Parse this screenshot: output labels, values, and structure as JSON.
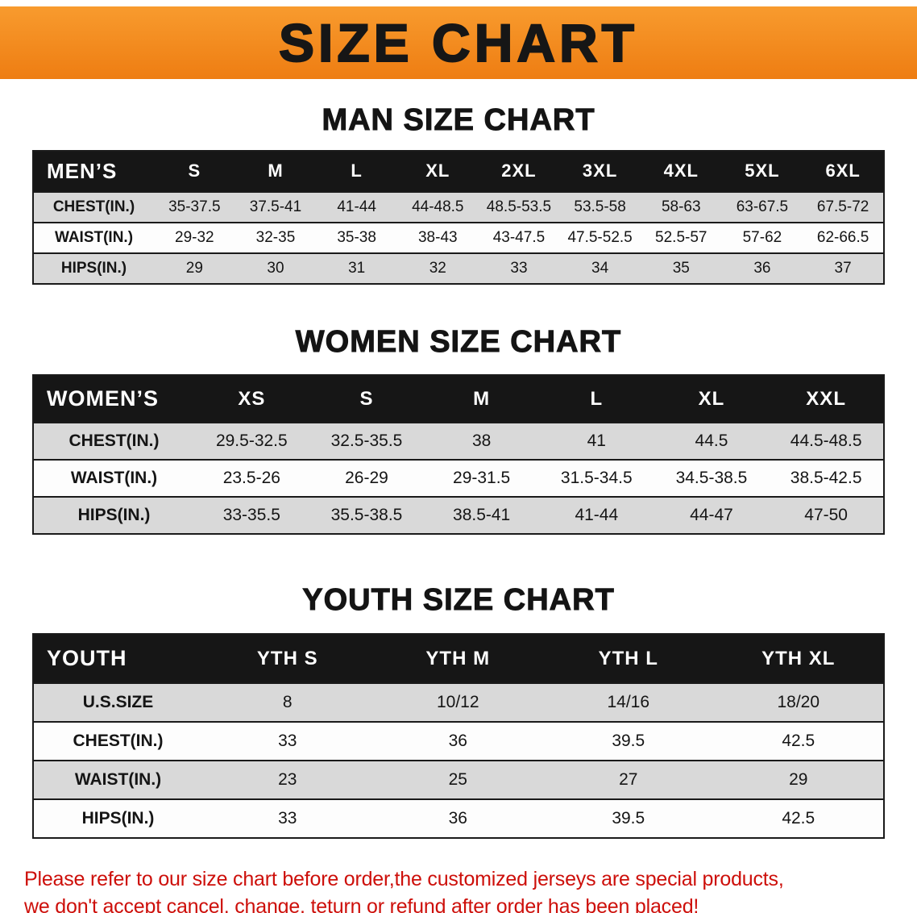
{
  "banner": {
    "title": "SIZE CHART"
  },
  "colors": {
    "banner_orange": "#f68b1f",
    "header_black": "#161616",
    "row_gray": "#d9d9d9",
    "footer_red": "#cd0f0a"
  },
  "men": {
    "heading": "MAN SIZE CHART",
    "table": {
      "header": [
        "MEN’S",
        "S",
        "M",
        "L",
        "XL",
        "2XL",
        "3XL",
        "4XL",
        "5XL",
        "6XL"
      ],
      "rows": [
        [
          "CHEST(IN.)",
          "35-37.5",
          "37.5-41",
          "41-44",
          "44-48.5",
          "48.5-53.5",
          "53.5-58",
          "58-63",
          "63-67.5",
          "67.5-72"
        ],
        [
          "WAIST(IN.)",
          "29-32",
          "32-35",
          "35-38",
          "38-43",
          "43-47.5",
          "47.5-52.5",
          "52.5-57",
          "57-62",
          "62-66.5"
        ],
        [
          "HIPS(IN.)",
          "29",
          "30",
          "31",
          "32",
          "33",
          "34",
          "35",
          "36",
          "37"
        ]
      ]
    }
  },
  "women": {
    "heading": "WOMEN SIZE CHART",
    "table": {
      "header": [
        "WOMEN’S",
        "XS",
        "S",
        "M",
        "L",
        "XL",
        "XXL"
      ],
      "rows": [
        [
          "CHEST(IN.)",
          "29.5-32.5",
          "32.5-35.5",
          "38",
          "41",
          "44.5",
          "44.5-48.5"
        ],
        [
          "WAIST(IN.)",
          "23.5-26",
          "26-29",
          "29-31.5",
          "31.5-34.5",
          "34.5-38.5",
          "38.5-42.5"
        ],
        [
          "HIPS(IN.)",
          "33-35.5",
          "35.5-38.5",
          "38.5-41",
          "41-44",
          "44-47",
          "47-50"
        ]
      ]
    }
  },
  "youth": {
    "heading": "YOUTH SIZE CHART",
    "table": {
      "header": [
        "YOUTH",
        "YTH S",
        "YTH M",
        "YTH L",
        "YTH XL"
      ],
      "rows": [
        [
          "U.S.SIZE",
          "8",
          "10/12",
          "14/16",
          "18/20"
        ],
        [
          "CHEST(IN.)",
          "33",
          "36",
          "39.5",
          "42.5"
        ],
        [
          "WAIST(IN.)",
          "23",
          "25",
          "27",
          "29"
        ],
        [
          "HIPS(IN.)",
          "33",
          "36",
          "39.5",
          "42.5"
        ]
      ]
    }
  },
  "footer": {
    "line1": "Please refer to our size chart before order,the customized jerseys are special products,",
    "line2": "we don't accept cancel, change, teturn or refund after order has been placed!"
  }
}
